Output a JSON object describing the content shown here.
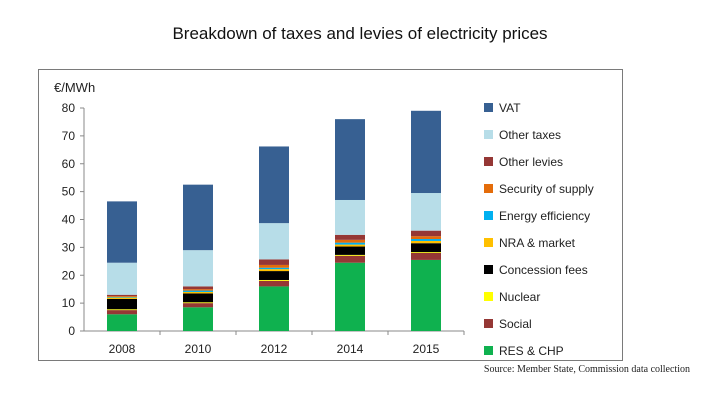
{
  "slide": {
    "title": "Breakdown of taxes and levies of electricity prices",
    "source": "Source: Member State, Commission data collection"
  },
  "chart_data": {
    "type": "bar",
    "stacked": true,
    "title": "",
    "xlabel": "",
    "ylabel": "€/MWh",
    "ylim": [
      0,
      80
    ],
    "yticks": [
      0,
      10,
      20,
      30,
      40,
      50,
      60,
      70,
      80
    ],
    "grid": false,
    "legend": "right",
    "categories": [
      "2008",
      "2010",
      "2012",
      "2014",
      "2015"
    ],
    "series": [
      {
        "name": "RES & CHP",
        "color": "#0fb14f",
        "values": [
          6,
          8.5,
          16,
          24.5,
          25.5
        ]
      },
      {
        "name": "Social",
        "color": "#953735",
        "values": [
          1.5,
          1.5,
          2,
          2.5,
          2.5
        ]
      },
      {
        "name": "Nuclear",
        "color": "#ffff00",
        "values": [
          0.3,
          0.3,
          0.3,
          0.3,
          0.3
        ]
      },
      {
        "name": "Concession fees",
        "color": "#000000",
        "values": [
          3.7,
          3.2,
          3.2,
          3,
          3.2
        ]
      },
      {
        "name": "NRA & market",
        "color": "#ffc000",
        "values": [
          0.5,
          0.5,
          0.7,
          0.7,
          0.8
        ]
      },
      {
        "name": "Energy efficiency",
        "color": "#00b0f0",
        "values": [
          0.2,
          0.5,
          0.5,
          0.7,
          0.7
        ]
      },
      {
        "name": "Security of supply",
        "color": "#e46c0a",
        "values": [
          0.3,
          0.5,
          1,
          1,
          1
        ]
      },
      {
        "name": "Other levies",
        "color": "#953735",
        "values": [
          0.5,
          1,
          2,
          1.8,
          2
        ]
      },
      {
        "name": "Other taxes",
        "color": "#b7dde8",
        "values": [
          11.5,
          13,
          13,
          12.5,
          13.5
        ]
      },
      {
        "name": "VAT",
        "color": "#376092",
        "values": [
          22,
          23.5,
          27.5,
          29,
          29.5
        ]
      }
    ]
  }
}
